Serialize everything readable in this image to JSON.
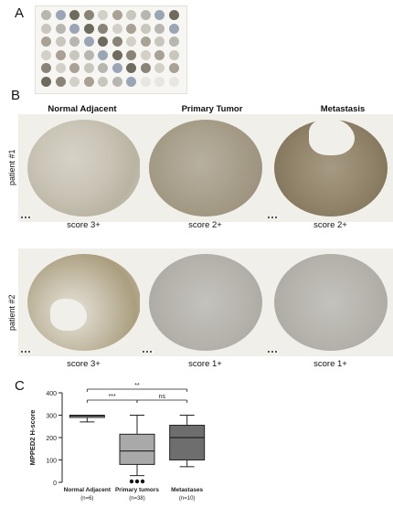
{
  "panels": {
    "a": "A",
    "b": "B",
    "c": "C"
  },
  "columns": [
    "Normal Adjacent",
    "Primary Tumor",
    "Metastasis"
  ],
  "patients": [
    {
      "label": "patient #1",
      "scores": [
        "score 3+",
        "score 2+",
        "score 2+"
      ]
    },
    {
      "label": "patient #2",
      "scores": [
        "score 3+",
        "score 1+",
        "score 1+"
      ]
    }
  ],
  "chart_data": {
    "type": "box",
    "ylabel": "MPPED2 H-score",
    "ylim": [
      0,
      400
    ],
    "yticks": [
      0,
      100,
      200,
      300,
      400
    ],
    "categories": [
      "Normal Adjacent",
      "Primary tumors",
      "Metastases"
    ],
    "counts": [
      "(n=6)",
      "(n=38)",
      "(n=10)"
    ],
    "boxes": [
      {
        "whisker_low": 270,
        "q1": 290,
        "median": 297,
        "q3": 300,
        "whisker_high": 300,
        "outliers": []
      },
      {
        "whisker_low": 30,
        "q1": 80,
        "median": 140,
        "q3": 215,
        "whisker_high": 300,
        "outliers": [
          0,
          0,
          0
        ]
      },
      {
        "whisker_low": 70,
        "q1": 100,
        "median": 200,
        "q3": 255,
        "whisker_high": 300,
        "outliers": []
      }
    ],
    "fills": [
      "#c9c9c9",
      "#a9a9a9",
      "#6e6e6e"
    ],
    "significance": [
      {
        "from": 0,
        "to": 1,
        "label": "***"
      },
      {
        "from": 1,
        "to": 2,
        "label": "ns"
      },
      {
        "from": 0,
        "to": 2,
        "label": "**"
      }
    ]
  }
}
